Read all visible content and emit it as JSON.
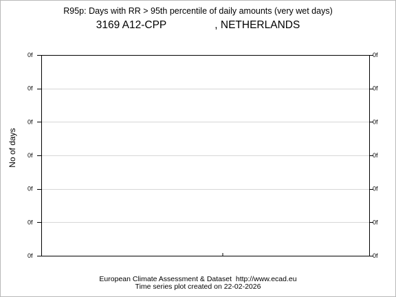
{
  "chart_data": {
    "type": "line",
    "title": "R95p: Days with RR > 95th percentile of daily amounts (very wet days)",
    "station": {
      "id": "3169",
      "name": "A12-CPP",
      "country": ", NETHERLANDS"
    },
    "ylabel": "No of days",
    "ytick_labels": [
      "0f",
      "0f",
      "0f",
      "0f",
      "0f",
      "0f",
      "0f"
    ],
    "grid": true,
    "series": []
  },
  "footer": {
    "credit": "European Climate Assessment & Dataset  http://www.ecad.eu",
    "created": "Time series plot created on 22-02-2026"
  }
}
